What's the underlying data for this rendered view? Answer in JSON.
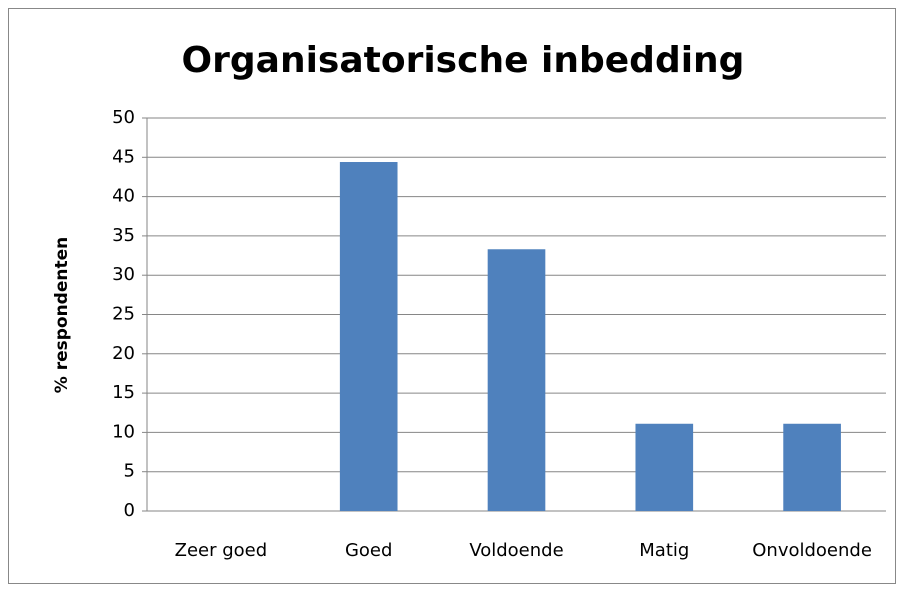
{
  "chart_data": {
    "type": "bar",
    "title": "Organisatorische inbedding",
    "y_label": "% respondenten",
    "categories": [
      "Zeer goed",
      "Goed",
      "Voldoende",
      "Matig",
      "Onvoldoende"
    ],
    "values": [
      0,
      44.4,
      33.3,
      11.1,
      11.1
    ],
    "color": "#4f81bd",
    "ylim": [
      0,
      50
    ],
    "yticks": [
      0,
      5,
      10,
      15,
      20,
      25,
      30,
      35,
      40,
      45,
      50
    ],
    "grid": true
  }
}
